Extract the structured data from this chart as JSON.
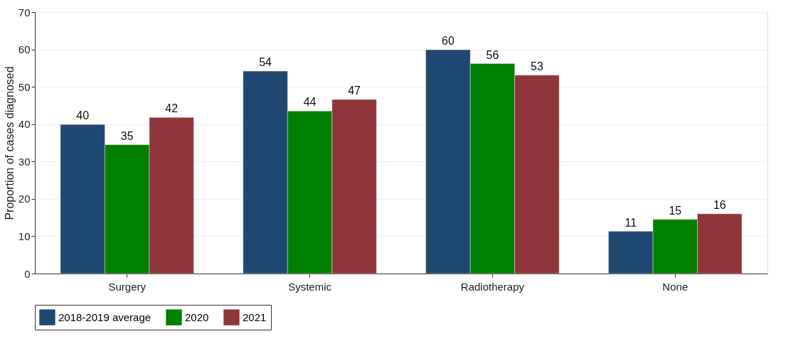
{
  "chart_data": {
    "type": "bar",
    "ylabel": "Proportion of cases diagnosed",
    "categories": [
      "Surgery",
      "Systemic",
      "Radiotherapy",
      "None"
    ],
    "series": [
      {
        "name": "2018-2019 average",
        "color": "#1f4871",
        "values": [
          39.9,
          54.2,
          59.9,
          11.3
        ],
        "value_labels": [
          "40",
          "54",
          "60",
          "11"
        ]
      },
      {
        "name": "2020",
        "color": "#008000",
        "values": [
          34.5,
          43.5,
          56.2,
          14.5
        ],
        "value_labels": [
          "35",
          "44",
          "56",
          "15"
        ]
      },
      {
        "name": "2021",
        "color": "#90353b",
        "values": [
          41.8,
          46.6,
          53.1,
          16.0
        ],
        "value_labels": [
          "42",
          "47",
          "53",
          "16"
        ]
      }
    ],
    "ylim": [
      0,
      70
    ],
    "yticks": [
      0,
      10,
      20,
      30,
      40,
      50,
      60,
      70
    ],
    "grid": "y",
    "legend": "bottom"
  }
}
